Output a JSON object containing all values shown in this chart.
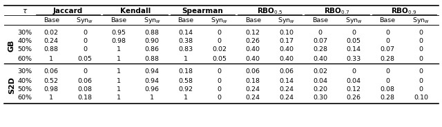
{
  "col_groups": [
    "Jaccard",
    "Kendall",
    "Spearman",
    "RBO$_{0.5}$",
    "RBO$_{0.7}$",
    "RBO$_{0.9}$"
  ],
  "sub_cols": [
    "Base",
    "Syn$_w$"
  ],
  "tau_col": "$\\tau$",
  "row_groups": [
    "GB",
    "S2D"
  ],
  "tau_vals": [
    "30%",
    "40%",
    "50%",
    "60%"
  ],
  "data": {
    "GB": {
      "30%": [
        "0.02",
        "0",
        "0.95",
        "0.88",
        "0.14",
        "0",
        "0.12",
        "0.10",
        "0",
        "0",
        "0",
        "0"
      ],
      "40%": [
        "0.24",
        "0",
        "0.98",
        "0.90",
        "0.38",
        "0",
        "0.26",
        "0.17",
        "0.07",
        "0.05",
        "0",
        "0"
      ],
      "50%": [
        "0.88",
        "0",
        "1",
        "0.86",
        "0.83",
        "0.02",
        "0.40",
        "0.40",
        "0.28",
        "0.14",
        "0.07",
        "0"
      ],
      "60%": [
        "1",
        "0.05",
        "1",
        "0.88",
        "1",
        "0.05",
        "0.40",
        "0.40",
        "0.40",
        "0.33",
        "0.28",
        "0"
      ]
    },
    "S2D": {
      "30%": [
        "0.06",
        "0",
        "1",
        "0.94",
        "0.18",
        "0",
        "0.06",
        "0.06",
        "0.02",
        "0",
        "0",
        "0"
      ],
      "40%": [
        "0.52",
        "0.06",
        "1",
        "0.94",
        "0.58",
        "0",
        "0.18",
        "0.14",
        "0.04",
        "0.04",
        "0",
        "0"
      ],
      "50%": [
        "0.98",
        "0.08",
        "1",
        "0.96",
        "0.92",
        "0",
        "0.24",
        "0.24",
        "0.20",
        "0.12",
        "0.08",
        "0"
      ],
      "60%": [
        "1",
        "0.18",
        "1",
        "1",
        "1",
        "0",
        "0.24",
        "0.24",
        "0.30",
        "0.26",
        "0.28",
        "0.10"
      ]
    }
  },
  "bg_color": "#ffffff",
  "line_color": "#000000",
  "text_color": "#000000",
  "header_fontsize": 7.5,
  "cell_fontsize": 6.8,
  "group_label_fontsize": 8
}
